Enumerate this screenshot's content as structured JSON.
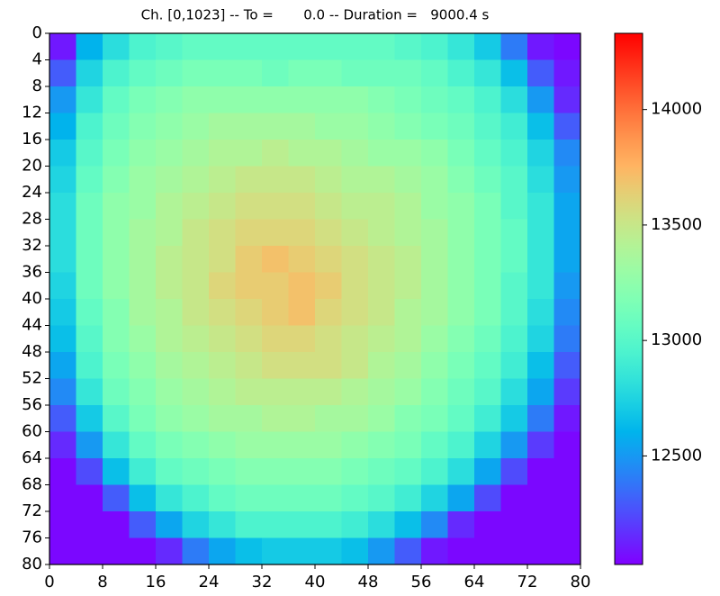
{
  "chart_data": {
    "type": "heatmap",
    "title": "Ch. [0,1023] -- To =       0.0 -- Duration =   9000.4 s",
    "colormap": "rainbow",
    "xlim": [
      0,
      80
    ],
    "ylim": [
      80,
      0
    ],
    "zlim": [
      12030,
      14330
    ],
    "xticks": [
      0,
      8,
      16,
      24,
      32,
      40,
      48,
      56,
      64,
      72,
      80
    ],
    "yticks": [
      0,
      4,
      8,
      12,
      16,
      20,
      24,
      28,
      32,
      36,
      40,
      44,
      48,
      52,
      56,
      60,
      64,
      68,
      72,
      76,
      80
    ],
    "zticks": [
      12500,
      13000,
      13500,
      14000
    ],
    "z": [
      [
        12100,
        12600,
        12800,
        12950,
        13000,
        13050,
        13050,
        13050,
        13050,
        13050,
        13050,
        13050,
        13050,
        13000,
        12950,
        12850,
        12700,
        12400,
        12100,
        12050
      ],
      [
        12300,
        12750,
        12950,
        13050,
        13100,
        13150,
        13150,
        13150,
        13100,
        13150,
        13150,
        13100,
        13100,
        13100,
        13050,
        12950,
        12850,
        12650,
        12300,
        12100
      ],
      [
        12500,
        12850,
        13050,
        13150,
        13200,
        13250,
        13250,
        13250,
        13250,
        13250,
        13250,
        13250,
        13200,
        13150,
        13100,
        13050,
        12950,
        12800,
        12500,
        12150
      ],
      [
        12600,
        12950,
        13100,
        13200,
        13250,
        13300,
        13350,
        13350,
        13350,
        13350,
        13300,
        13300,
        13250,
        13200,
        13150,
        13100,
        13000,
        12900,
        12650,
        12300
      ],
      [
        12700,
        13000,
        13150,
        13250,
        13300,
        13350,
        13400,
        13400,
        13450,
        13400,
        13400,
        13350,
        13300,
        13300,
        13250,
        13150,
        13050,
        12950,
        12750,
        12450
      ],
      [
        12750,
        13050,
        13200,
        13300,
        13350,
        13400,
        13450,
        13500,
        13500,
        13500,
        13450,
        13400,
        13400,
        13350,
        13300,
        13200,
        13100,
        13000,
        12800,
        12500
      ],
      [
        12800,
        13100,
        13250,
        13300,
        13400,
        13450,
        13500,
        13550,
        13550,
        13550,
        13500,
        13450,
        13450,
        13400,
        13300,
        13250,
        13150,
        13000,
        12850,
        12550
      ],
      [
        12800,
        13100,
        13250,
        13350,
        13400,
        13500,
        13550,
        13600,
        13600,
        13600,
        13550,
        13500,
        13450,
        13400,
        13350,
        13250,
        13150,
        13050,
        12850,
        12550
      ],
      [
        12800,
        13100,
        13250,
        13350,
        13450,
        13500,
        13550,
        13650,
        13700,
        13650,
        13600,
        13550,
        13500,
        13450,
        13350,
        13250,
        13150,
        13050,
        12850,
        12550
      ],
      [
        12750,
        13100,
        13250,
        13350,
        13450,
        13500,
        13600,
        13650,
        13650,
        13700,
        13650,
        13550,
        13500,
        13450,
        13350,
        13250,
        13150,
        13000,
        12850,
        12500
      ],
      [
        12700,
        13050,
        13200,
        13350,
        13400,
        13500,
        13550,
        13600,
        13650,
        13700,
        13600,
        13550,
        13500,
        13400,
        13350,
        13250,
        13150,
        13000,
        12800,
        12450
      ],
      [
        12650,
        13000,
        13200,
        13300,
        13400,
        13450,
        13500,
        13550,
        13600,
        13600,
        13550,
        13500,
        13450,
        13400,
        13300,
        13200,
        13100,
        12950,
        12750,
        12400
      ],
      [
        12550,
        12950,
        13150,
        13250,
        13350,
        13400,
        13450,
        13500,
        13550,
        13550,
        13550,
        13500,
        13400,
        13350,
        13250,
        13150,
        13050,
        12900,
        12650,
        12300
      ],
      [
        12450,
        12850,
        13100,
        13200,
        13300,
        13350,
        13400,
        13450,
        13450,
        13450,
        13450,
        13400,
        13350,
        13300,
        13200,
        13100,
        13000,
        12800,
        12550,
        12200
      ],
      [
        12300,
        12700,
        13000,
        13150,
        13250,
        13300,
        13350,
        13350,
        13400,
        13400,
        13350,
        13350,
        13300,
        13200,
        13150,
        13050,
        12900,
        12700,
        12400,
        12100
      ],
      [
        12150,
        12500,
        12850,
        13050,
        13150,
        13200,
        13250,
        13300,
        13300,
        13300,
        13300,
        13250,
        13200,
        13150,
        13050,
        12950,
        12750,
        12500,
        12200,
        12050
      ],
      [
        12050,
        12250,
        12650,
        12900,
        13050,
        13100,
        13150,
        13200,
        13200,
        13200,
        13200,
        13150,
        13100,
        13050,
        12950,
        12800,
        12550,
        12250,
        12050,
        12050
      ],
      [
        12050,
        12050,
        12300,
        12650,
        12850,
        12950,
        13050,
        13100,
        13100,
        13100,
        13100,
        13050,
        13000,
        12900,
        12750,
        12550,
        12250,
        12050,
        12050,
        12050
      ],
      [
        12050,
        12050,
        12050,
        12300,
        12550,
        12750,
        12850,
        12950,
        12950,
        12950,
        12950,
        12900,
        12800,
        12650,
        12450,
        12150,
        12050,
        12050,
        12050,
        12050
      ],
      [
        12050,
        12050,
        12050,
        12050,
        12150,
        12400,
        12550,
        12650,
        12700,
        12700,
        12700,
        12650,
        12500,
        12300,
        12100,
        12050,
        12050,
        12050,
        12050,
        12050
      ]
    ]
  }
}
